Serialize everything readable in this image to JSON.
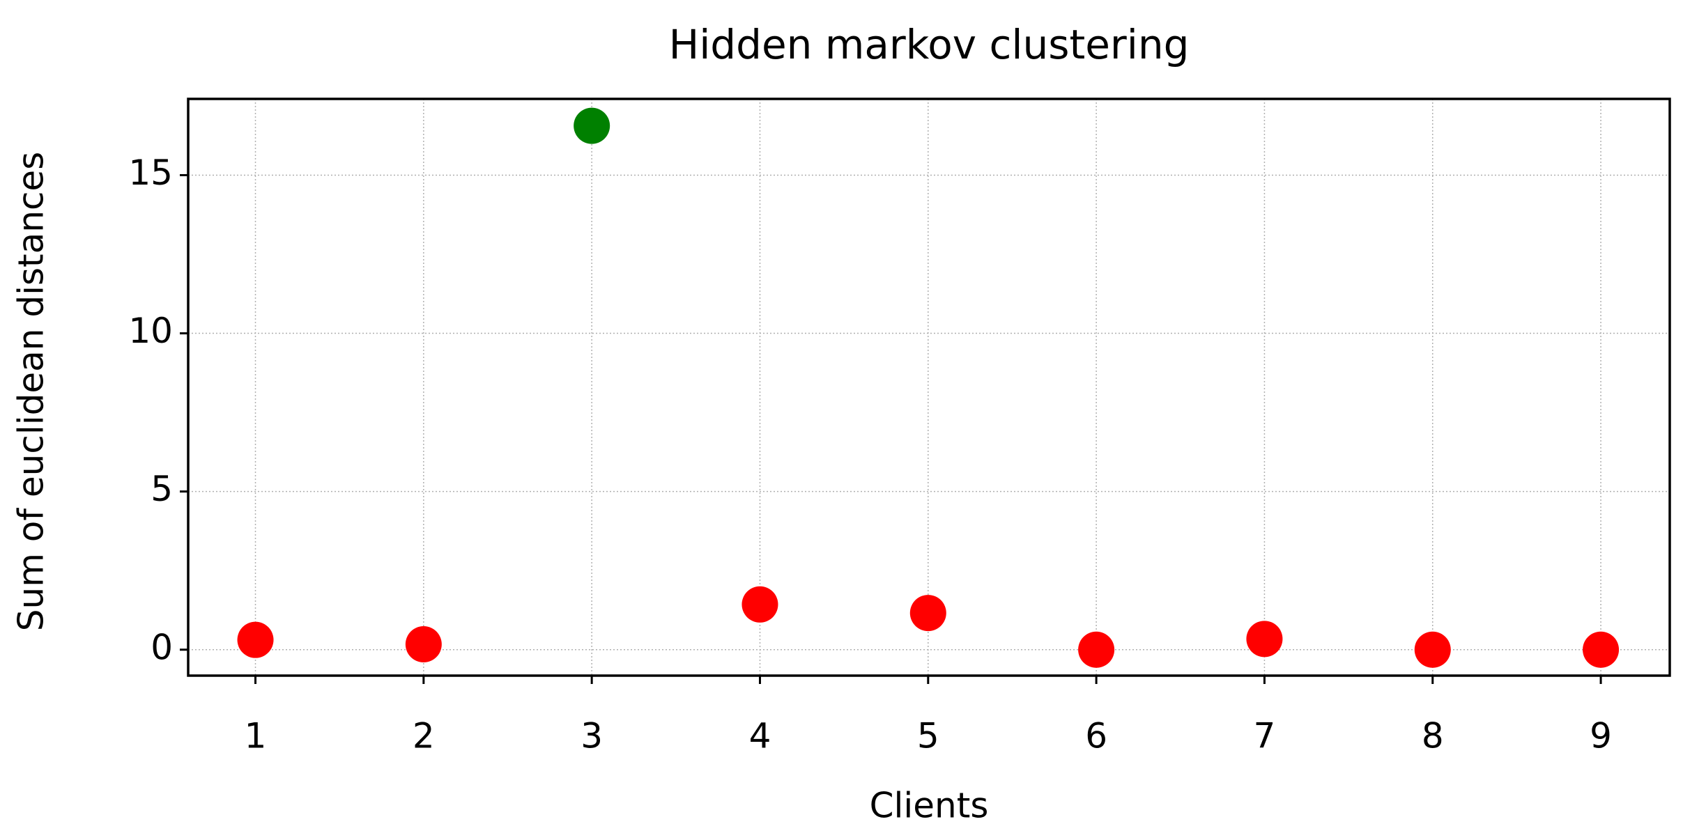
{
  "chart_data": {
    "type": "scatter",
    "title": "Hidden markov clustering",
    "x_label": "Clients",
    "y_label": "Sum of euclidean distances",
    "x": [
      1,
      2,
      3,
      4,
      5,
      6,
      7,
      8,
      9
    ],
    "values": [
      0.31,
      0.17,
      16.56,
      1.43,
      1.16,
      0.0,
      0.34,
      0.0,
      0.0
    ],
    "colors": [
      "#ff0000",
      "#ff0000",
      "#008000",
      "#ff0000",
      "#ff0000",
      "#ff0000",
      "#ff0000",
      "#ff0000",
      "#ff0000"
    ],
    "xlim": [
      0.6,
      9.41
    ],
    "ylim": [
      -0.82,
      17.41
    ],
    "xticks": [
      1,
      2,
      3,
      4,
      5,
      6,
      7,
      8,
      9
    ],
    "yticks": [
      0,
      5,
      10,
      15
    ],
    "grid": true
  }
}
